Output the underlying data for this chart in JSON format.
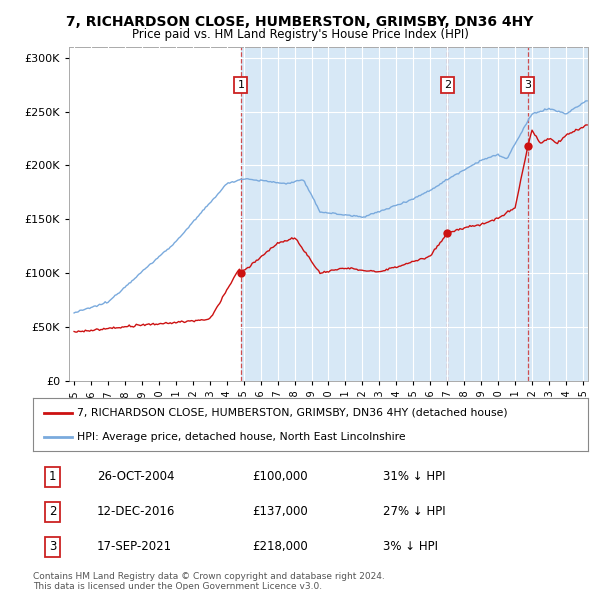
{
  "title": "7, RICHARDSON CLOSE, HUMBERSTON, GRIMSBY, DN36 4HY",
  "subtitle": "Price paid vs. HM Land Registry's House Price Index (HPI)",
  "bg_color": "#dce9f5",
  "plot_bg_color": "#ffffff",
  "sale_prices": [
    100000,
    137000,
    218000
  ],
  "sale_labels": [
    "1",
    "2",
    "3"
  ],
  "sale_info": [
    {
      "label": "1",
      "date": "26-OCT-2004",
      "price": "£100,000",
      "hpi": "31% ↓ HPI"
    },
    {
      "label": "2",
      "date": "12-DEC-2016",
      "price": "£137,000",
      "hpi": "27% ↓ HPI"
    },
    {
      "label": "3",
      "date": "17-SEP-2021",
      "price": "£218,000",
      "hpi": "3% ↓ HPI"
    }
  ],
  "legend_line1": "7, RICHARDSON CLOSE, HUMBERSTON, GRIMSBY, DN36 4HY (detached house)",
  "legend_line2": "HPI: Average price, detached house, North East Lincolnshire",
  "footer1": "Contains HM Land Registry data © Crown copyright and database right 2024.",
  "footer2": "This data is licensed under the Open Government Licence v3.0.",
  "hpi_color": "#7aaadd",
  "price_color": "#cc1111",
  "sale_marker_color": "#cc1111",
  "dashed_line_color": "#cc3333",
  "shade_color": "#d0e4f5",
  "ylim": [
    0,
    310000
  ],
  "yticks": [
    0,
    50000,
    100000,
    150000,
    200000,
    250000,
    300000
  ],
  "xlim_start": 1994.7,
  "xlim_end": 2025.3,
  "xticks": [
    1995,
    1996,
    1997,
    1998,
    1999,
    2000,
    2001,
    2002,
    2003,
    2004,
    2005,
    2006,
    2007,
    2008,
    2009,
    2010,
    2011,
    2012,
    2013,
    2014,
    2015,
    2016,
    2017,
    2018,
    2019,
    2020,
    2021,
    2022,
    2023,
    2024,
    2025
  ]
}
